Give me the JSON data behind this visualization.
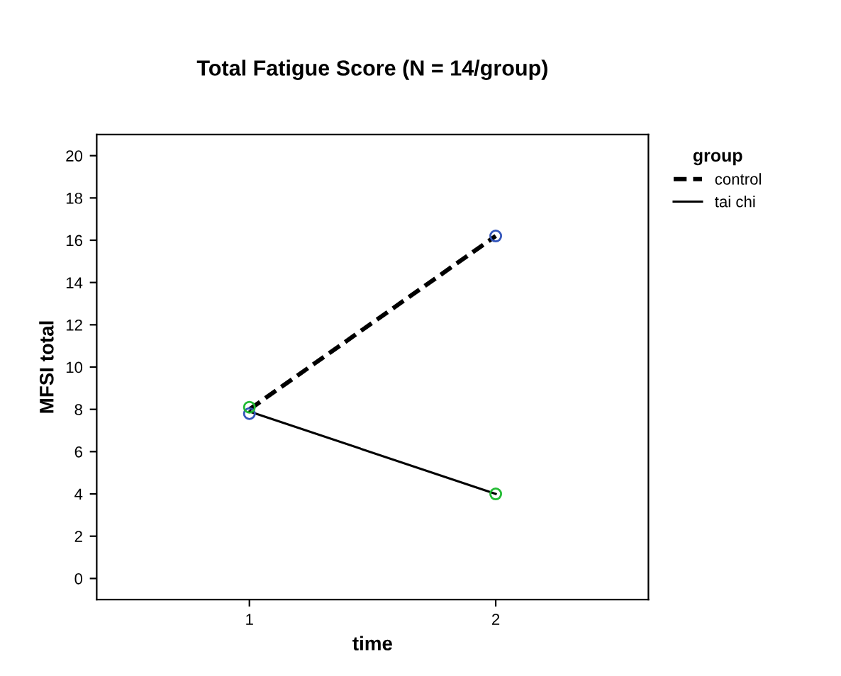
{
  "chart_data": {
    "type": "line",
    "title": "Total Fatigue Score (N = 14/group)",
    "xlabel": "time",
    "ylabel": "MFSI total",
    "x": [
      1,
      2
    ],
    "xlim": [
      0.38,
      2.62
    ],
    "xticks": [
      1,
      2
    ],
    "ylim": [
      -1,
      21
    ],
    "yticks": [
      0,
      2,
      4,
      6,
      8,
      10,
      12,
      14,
      16,
      18,
      20
    ],
    "grid": false,
    "legend": "top right",
    "legend_title": "group",
    "series": [
      {
        "name": "control",
        "color": "#000000",
        "values": [
          8.0,
          16.2
        ],
        "line_style": "dashed",
        "marker": "none"
      },
      {
        "name": "tai chi",
        "color": "#000000",
        "values": [
          7.9,
          4.0
        ],
        "line_style": "solid",
        "marker": "none"
      },
      {
        "type": "scatter",
        "color": "#3355bb",
        "values": [
          7.8,
          16.2
        ],
        "marker": "circle"
      },
      {
        "type": "scatter",
        "color": "#22bb33",
        "values": [
          8.1,
          4.0
        ],
        "marker": "circle"
      }
    ]
  }
}
